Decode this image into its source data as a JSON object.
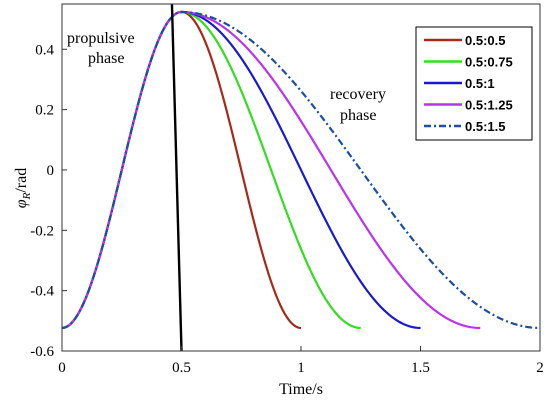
{
  "chart_data": {
    "type": "line",
    "xlabel": "Time/s",
    "ylabel_main": "φ",
    "ylabel_sub": "R",
    "ylabel_unit": "/rad",
    "xlim": [
      0,
      2
    ],
    "ylim": [
      -0.6,
      0.55
    ],
    "x_ticks": [
      0,
      0.5,
      1,
      1.5,
      2
    ],
    "x_tick_labels": [
      "0",
      "0.5",
      "1",
      "1.5",
      "2"
    ],
    "y_ticks": [
      -0.6,
      -0.4,
      -0.2,
      0,
      0.2,
      0.4
    ],
    "y_tick_labels": [
      "-0.6",
      "-0.4",
      "-0.2",
      "0",
      "0.2",
      "0.4"
    ],
    "grid": false,
    "legend_position": "top-right",
    "amplitude": 0.5236,
    "propulsive_duration": 0.5,
    "annotations": [
      {
        "text": "propulsive",
        "line": 1
      },
      {
        "text": "phase",
        "line": 2
      },
      {
        "text": "recovery",
        "line": 1
      },
      {
        "text": "phase",
        "line": 2
      }
    ],
    "divider_line": {
      "x": [
        0.46,
        0.5
      ],
      "y": [
        0.55,
        -0.6
      ],
      "color": "#000000"
    },
    "series": [
      {
        "name": "0.5:0.5",
        "recovery_duration": 0.5,
        "color": "#a52a1a",
        "dash": "solid"
      },
      {
        "name": "0.5:0.75",
        "recovery_duration": 0.75,
        "color": "#33dd22",
        "dash": "solid"
      },
      {
        "name": "0.5:1",
        "recovery_duration": 1.0,
        "color": "#1a1acc",
        "dash": "solid"
      },
      {
        "name": "0.5:1.25",
        "recovery_duration": 1.25,
        "color": "#bb33ee",
        "dash": "solid"
      },
      {
        "name": "0.5:1.5",
        "recovery_duration": 1.5,
        "color": "#1f4f9a",
        "dash": "dashdot"
      }
    ]
  }
}
